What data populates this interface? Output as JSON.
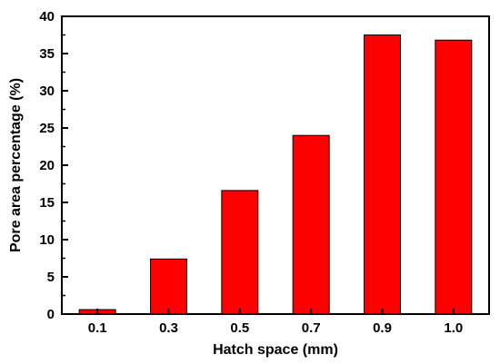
{
  "chart_data": {
    "type": "bar",
    "title": "",
    "xlabel": "Hatch space (mm)",
    "ylabel": "Pore area percentage (%)",
    "categories": [
      "0.1",
      "0.3",
      "0.5",
      "0.7",
      "0.9",
      "1.0"
    ],
    "values": [
      0.6,
      7.4,
      16.6,
      24.0,
      37.5,
      36.8
    ],
    "ylim": [
      0,
      40
    ],
    "yticks": [
      "0",
      "5",
      "10",
      "15",
      "20",
      "25",
      "30",
      "35",
      "40"
    ],
    "grid": false,
    "legend": "none",
    "colors": {
      "bar": "#ff0000",
      "bar_edge": "#000000",
      "axis": "#000000"
    }
  }
}
